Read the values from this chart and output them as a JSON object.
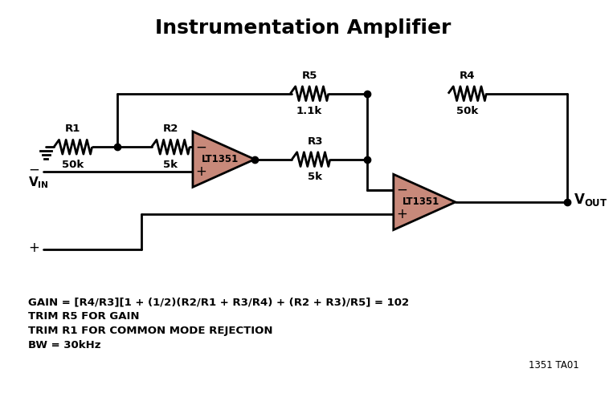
{
  "title": "Instrumentation Amplifier",
  "title_fontsize": 18,
  "title_fontweight": "bold",
  "bg_color": "#ffffff",
  "line_color": "#000000",
  "resistor_color": "#000000",
  "opamp_fill": "#c8897a",
  "opamp_stroke": "#000000",
  "dot_color": "#000000",
  "text_color": "#000000",
  "formula_text": "GAIN = [R4/R3][1 + (1/2)(R2/R1 + R3/R4) + (R2 + R3)/R5] = 102",
  "trim1_text": "TRIM R5 FOR GAIN",
  "trim2_text": "TRIM R1 FOR COMMON MODE REJECTION",
  "bw_text": "BW = 30kHz",
  "ref_text": "1351 TA01",
  "vout_text": "V",
  "vout_sub": "OUT",
  "vin_text": "V",
  "vin_sub": "IN",
  "r1_label": "R1\n50k",
  "r2_label": "R2\n5k",
  "r3_label": "R3\n5k",
  "r4_label": "R4\n50k",
  "r5_label": "R5\n1.1k",
  "lt1351_label": "LT1351",
  "lw": 2.0,
  "dot_size": 6
}
